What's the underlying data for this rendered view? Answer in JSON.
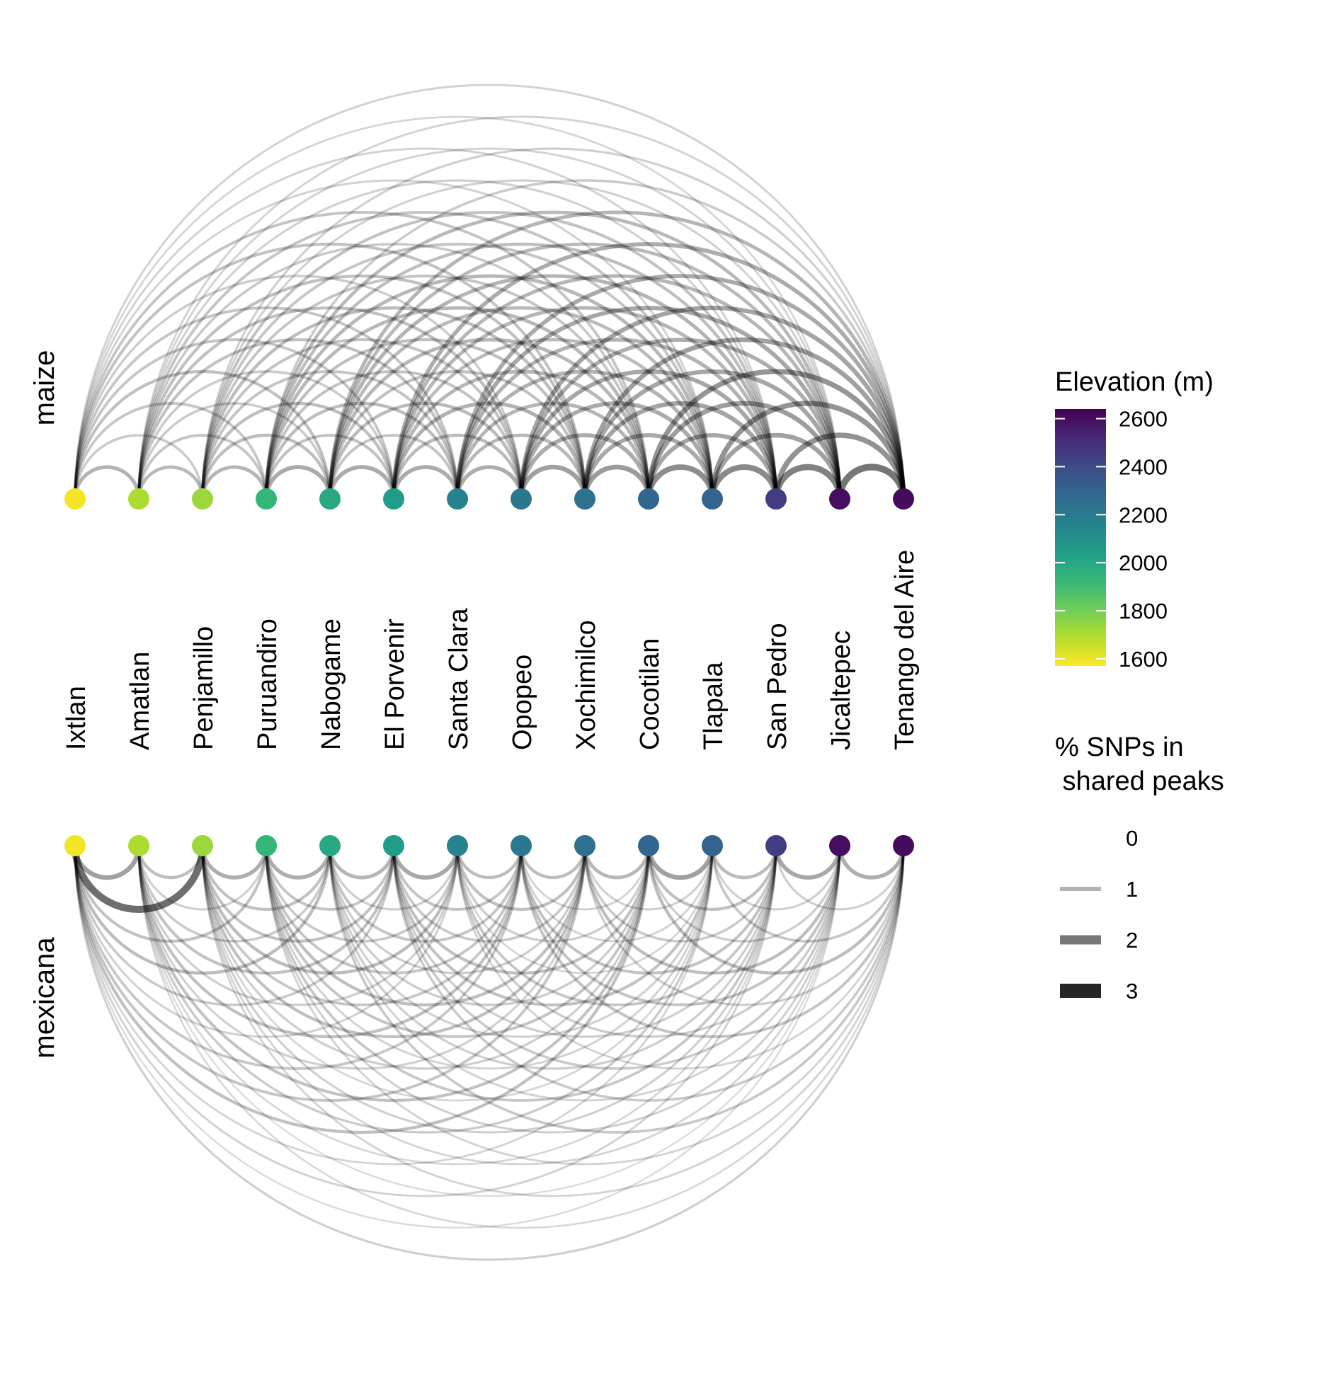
{
  "chart_data": {
    "type": "arc-diagram",
    "populations": [
      {
        "name": "Ixtlan",
        "elevation": 1590
      },
      {
        "name": "Amatlan",
        "elevation": 1700
      },
      {
        "name": "Penjamillo",
        "elevation": 1730
      },
      {
        "name": "Puruandiro",
        "elevation": 1930
      },
      {
        "name": "Nabogame",
        "elevation": 2000
      },
      {
        "name": "El Porvenir",
        "elevation": 2050
      },
      {
        "name": "Santa Clara",
        "elevation": 2170
      },
      {
        "name": "Opopeo",
        "elevation": 2210
      },
      {
        "name": "Xochimilco",
        "elevation": 2240
      },
      {
        "name": "Cocotilan",
        "elevation": 2290
      },
      {
        "name": "Tlapala",
        "elevation": 2300
      },
      {
        "name": "San Pedro",
        "elevation": 2450
      },
      {
        "name": "Jicaltepec",
        "elevation": 2600
      },
      {
        "name": "Tenango del Aire",
        "elevation": 2610
      }
    ],
    "panels": [
      {
        "label": "maize",
        "direction": "up"
      },
      {
        "label": "mexicana",
        "direction": "down"
      }
    ],
    "color_legend": {
      "title": "Elevation (m)",
      "min": 1570,
      "max": 2640,
      "ticks": [
        1600,
        1800,
        2000,
        2200,
        2400,
        2600
      ],
      "palette": [
        "#FDE725",
        "#B4DE2C",
        "#6DCD59",
        "#35B779",
        "#1F9E89",
        "#26828E",
        "#31688E",
        "#3E4A89",
        "#482878",
        "#440154"
      ]
    },
    "size_legend": {
      "title_lines": [
        "% SNPs in",
        " shared peaks"
      ],
      "entries": [
        {
          "label": "0",
          "value": 0
        },
        {
          "label": "1",
          "value": 1
        },
        {
          "label": "2",
          "value": 2
        },
        {
          "label": "3",
          "value": 3
        }
      ]
    }
  }
}
